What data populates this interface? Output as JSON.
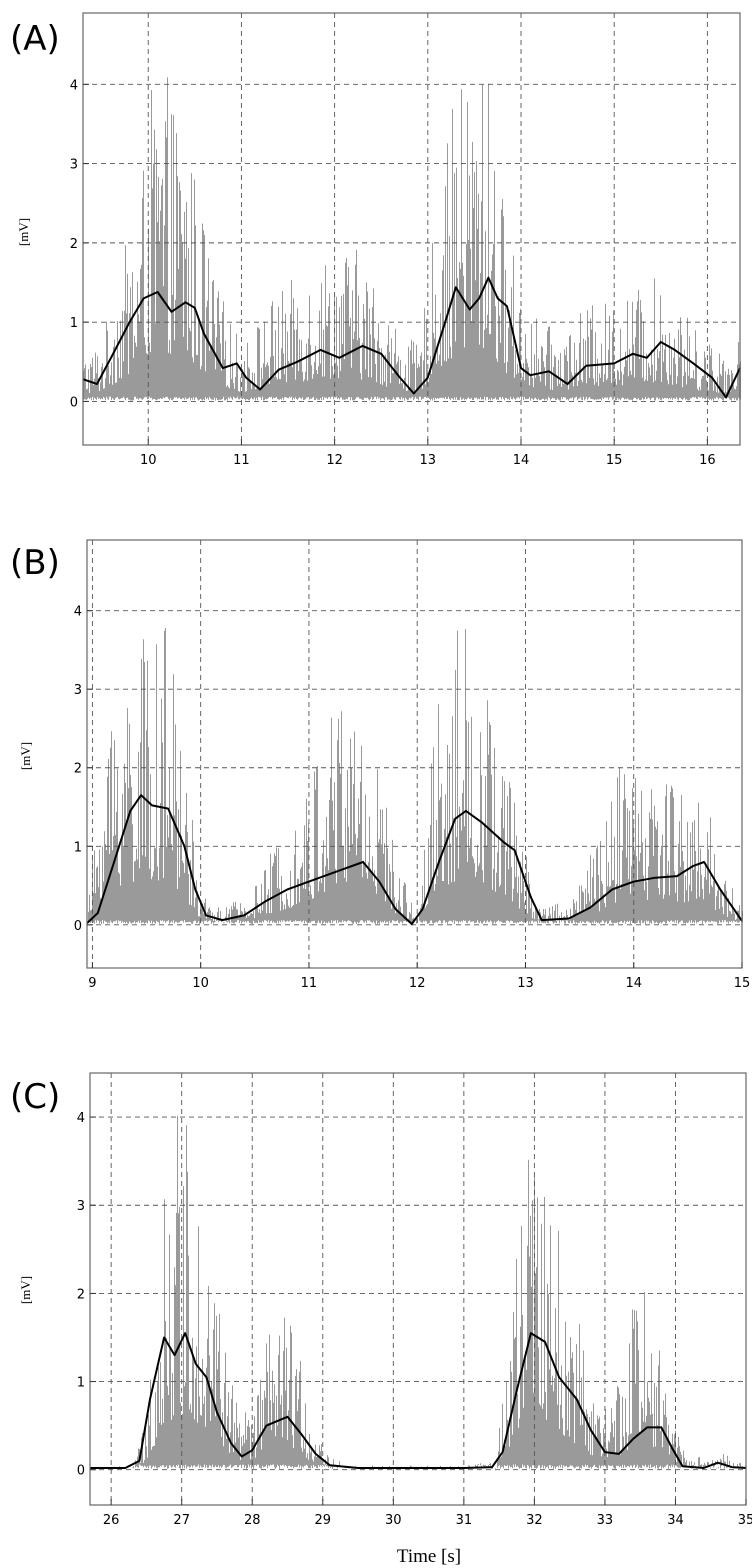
{
  "chart_data": [
    {
      "panel_label": "(A)",
      "type": "line",
      "xlabel": "",
      "ylabel": "[mV]",
      "xlim": [
        9.3,
        16.35
      ],
      "ylim": [
        -0.55,
        4.9
      ],
      "x_ticks": [
        "10",
        "11",
        "12",
        "13",
        "14",
        "15",
        "16"
      ],
      "y_ticks": [
        "0",
        "1",
        "2",
        "3",
        "4"
      ],
      "grid": true,
      "series": [
        {
          "color": "#9a9a9a",
          "style": "raw-signal-spikes",
          "envelope_x": [
            9.3,
            9.5,
            9.7,
            9.9,
            10.0,
            10.2,
            10.4,
            10.55,
            10.7,
            10.9,
            11.0,
            11.3,
            11.6,
            11.9,
            12.2,
            12.4,
            12.7,
            12.9,
            13.1,
            13.3,
            13.5,
            13.65,
            13.8,
            14.0,
            14.2,
            14.4,
            14.7,
            15.0,
            15.3,
            15.5,
            15.7,
            15.9,
            16.1,
            16.35
          ],
          "envelope_y": [
            0.6,
            0.8,
            1.8,
            2.5,
            3.9,
            4.1,
            3.5,
            2.6,
            1.6,
            1.0,
            0.7,
            1.3,
            1.6,
            1.9,
            2.0,
            1.6,
            0.9,
            0.7,
            2.5,
            4.0,
            4.3,
            4.2,
            2.6,
            1.4,
            1.0,
            0.9,
            1.2,
            1.3,
            1.5,
            1.6,
            1.2,
            0.9,
            0.7,
            0.8
          ]
        },
        {
          "color": "#000000",
          "style": "smoothed-envelope",
          "x": [
            9.3,
            9.45,
            9.6,
            9.8,
            9.95,
            10.1,
            10.25,
            10.4,
            10.5,
            10.6,
            10.8,
            10.95,
            11.05,
            11.2,
            11.4,
            11.6,
            11.85,
            12.05,
            12.3,
            12.5,
            12.7,
            12.85,
            13.0,
            13.2,
            13.3,
            13.45,
            13.55,
            13.65,
            13.75,
            13.85,
            14.0,
            14.1,
            14.3,
            14.5,
            14.7,
            15.0,
            15.2,
            15.35,
            15.5,
            15.65,
            15.85,
            16.05,
            16.2,
            16.35
          ],
          "y": [
            0.28,
            0.22,
            0.55,
            1.0,
            1.3,
            1.38,
            1.13,
            1.25,
            1.18,
            0.85,
            0.42,
            0.48,
            0.3,
            0.15,
            0.4,
            0.5,
            0.65,
            0.55,
            0.7,
            0.6,
            0.3,
            0.1,
            0.3,
            1.05,
            1.44,
            1.16,
            1.3,
            1.56,
            1.3,
            1.2,
            0.42,
            0.33,
            0.38,
            0.22,
            0.45,
            0.48,
            0.6,
            0.55,
            0.75,
            0.65,
            0.48,
            0.3,
            0.05,
            0.42
          ]
        }
      ]
    },
    {
      "panel_label": "(B)",
      "type": "line",
      "xlabel": "",
      "ylabel": "[mV]",
      "xlim": [
        8.95,
        15.0
      ],
      "ylim": [
        -0.55,
        4.9
      ],
      "x_ticks": [
        "9",
        "10",
        "11",
        "12",
        "13",
        "14",
        "15"
      ],
      "y_ticks": [
        "0",
        "1",
        "2",
        "3",
        "4"
      ],
      "grid": true,
      "series": [
        {
          "color": "#9a9a9a",
          "style": "raw-signal-spikes",
          "envelope_x": [
            8.95,
            9.05,
            9.2,
            9.35,
            9.5,
            9.7,
            9.85,
            10.0,
            10.2,
            10.5,
            10.8,
            11.0,
            11.2,
            11.4,
            11.6,
            11.8,
            12.0,
            12.15,
            12.3,
            12.45,
            12.6,
            12.8,
            12.95,
            13.1,
            13.4,
            13.7,
            13.9,
            14.1,
            14.3,
            14.5,
            14.7,
            14.85,
            15.0
          ],
          "envelope_y": [
            0.1,
            1.8,
            3.2,
            3.5,
            3.7,
            3.8,
            2.2,
            0.4,
            0.2,
            0.5,
            1.4,
            1.8,
            3.0,
            3.2,
            2.4,
            0.9,
            0.1,
            2.8,
            3.4,
            4.2,
            3.3,
            2.2,
            1.3,
            0.3,
            0.3,
            1.2,
            2.2,
            2.0,
            2.1,
            1.8,
            1.5,
            0.7,
            0.2
          ]
        },
        {
          "color": "#000000",
          "style": "smoothed-envelope",
          "x": [
            8.95,
            9.05,
            9.2,
            9.35,
            9.45,
            9.55,
            9.7,
            9.85,
            9.95,
            10.05,
            10.2,
            10.4,
            10.6,
            10.8,
            11.0,
            11.3,
            11.5,
            11.65,
            11.8,
            11.95,
            12.05,
            12.2,
            12.35,
            12.45,
            12.6,
            12.8,
            12.9,
            13.05,
            13.15,
            13.4,
            13.6,
            13.8,
            14.0,
            14.2,
            14.4,
            14.55,
            14.65,
            14.8,
            15.0
          ],
          "y": [
            0.02,
            0.15,
            0.8,
            1.45,
            1.65,
            1.52,
            1.48,
            1.0,
            0.45,
            0.12,
            0.06,
            0.12,
            0.3,
            0.45,
            0.55,
            0.7,
            0.8,
            0.55,
            0.2,
            0.01,
            0.2,
            0.8,
            1.35,
            1.45,
            1.3,
            1.05,
            0.95,
            0.35,
            0.06,
            0.08,
            0.22,
            0.45,
            0.55,
            0.6,
            0.62,
            0.75,
            0.8,
            0.45,
            0.05
          ]
        }
      ]
    },
    {
      "panel_label": "(C)",
      "type": "line",
      "xlabel": "Time [s]",
      "ylabel": "[mV]",
      "xlim": [
        25.7,
        35.0
      ],
      "ylim": [
        -0.4,
        4.5
      ],
      "x_ticks": [
        "26",
        "27",
        "28",
        "29",
        "30",
        "31",
        "32",
        "33",
        "34",
        "35"
      ],
      "y_ticks": [
        "0",
        "1",
        "2",
        "3",
        "4"
      ],
      "grid": true,
      "series": [
        {
          "color": "#9a9a9a",
          "style": "raw-signal-spikes",
          "envelope_x": [
            25.7,
            26.3,
            26.5,
            26.7,
            26.9,
            27.05,
            27.2,
            27.4,
            27.6,
            27.8,
            28.0,
            28.2,
            28.4,
            28.6,
            28.8,
            29.0,
            29.3,
            30.0,
            31.0,
            31.45,
            31.6,
            31.8,
            31.95,
            32.1,
            32.3,
            32.5,
            32.7,
            32.9,
            33.1,
            33.3,
            33.5,
            33.7,
            33.9,
            34.1,
            34.4,
            34.7,
            35.0
          ],
          "envelope_y": [
            0.02,
            0.05,
            0.6,
            2.8,
            4.0,
            4.1,
            3.6,
            2.8,
            1.5,
            0.7,
            0.7,
            1.5,
            1.8,
            1.6,
            0.7,
            0.25,
            0.05,
            0.05,
            0.05,
            0.1,
            1.3,
            2.9,
            4.2,
            3.4,
            2.9,
            2.3,
            1.4,
            0.7,
            0.8,
            1.3,
            2.8,
            1.6,
            0.9,
            0.3,
            0.1,
            0.2,
            0.05
          ]
        },
        {
          "color": "#000000",
          "style": "smoothed-envelope",
          "x": [
            25.7,
            26.2,
            26.4,
            26.55,
            26.75,
            26.9,
            27.05,
            27.2,
            27.35,
            27.5,
            27.7,
            27.85,
            28.0,
            28.2,
            28.35,
            28.5,
            28.7,
            28.9,
            29.1,
            29.5,
            30.0,
            30.5,
            31.0,
            31.4,
            31.55,
            31.75,
            31.95,
            32.15,
            32.35,
            32.6,
            32.8,
            33.0,
            33.2,
            33.4,
            33.6,
            33.8,
            33.95,
            34.1,
            34.4,
            34.6,
            34.8,
            35.0
          ],
          "y": [
            0.02,
            0.02,
            0.1,
            0.8,
            1.5,
            1.3,
            1.55,
            1.2,
            1.05,
            0.65,
            0.3,
            0.15,
            0.22,
            0.5,
            0.55,
            0.6,
            0.4,
            0.18,
            0.05,
            0.02,
            0.02,
            0.02,
            0.02,
            0.03,
            0.2,
            0.9,
            1.55,
            1.45,
            1.05,
            0.8,
            0.45,
            0.2,
            0.18,
            0.35,
            0.48,
            0.48,
            0.25,
            0.04,
            0.02,
            0.08,
            0.03,
            0.02
          ]
        }
      ]
    }
  ]
}
